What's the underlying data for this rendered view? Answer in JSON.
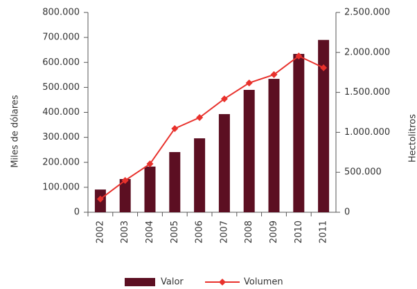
{
  "chart_data": {
    "type": "bar_line",
    "categories": [
      "2002",
      "2003",
      "2004",
      "2005",
      "2006",
      "2007",
      "2008",
      "2009",
      "2010",
      "2011"
    ],
    "ylabel": "Miles de dólares",
    "y2label": "Hectolitros",
    "ylim": [
      0,
      800000
    ],
    "yticks": [
      {
        "value": 0,
        "label": "0"
      },
      {
        "value": 100000,
        "label": "100.000"
      },
      {
        "value": 200000,
        "label": "200.000"
      },
      {
        "value": 300000,
        "label": "300.000"
      },
      {
        "value": 400000,
        "label": "400.000"
      },
      {
        "value": 500000,
        "label": "500.000"
      },
      {
        "value": 600000,
        "label": "600.000"
      },
      {
        "value": 700000,
        "label": "700.000"
      },
      {
        "value": 800000,
        "label": "800.000"
      }
    ],
    "y2lim": [
      0,
      2500000
    ],
    "y2ticks": [
      {
        "value": 0,
        "label": "0"
      },
      {
        "value": 500000,
        "label": "500.000"
      },
      {
        "value": 1000000,
        "label": "1.000.000"
      },
      {
        "value": 1500000,
        "label": "1.500.000"
      },
      {
        "value": 2000000,
        "label": "2.000.000"
      },
      {
        "value": 2500000,
        "label": "2.500.000"
      }
    ],
    "series": [
      {
        "name": "Valor",
        "type": "bar",
        "color": "#5c0f22",
        "values": [
          91000,
          133000,
          183000,
          241000,
          296000,
          393000,
          490000,
          534000,
          634000,
          690000
        ]
      },
      {
        "name": "Volumen",
        "type": "line",
        "axis": "y2",
        "color": "#e8312c",
        "values": [
          165000,
          398000,
          605000,
          1047000,
          1185000,
          1419000,
          1618000,
          1722000,
          1955000,
          1808000
        ]
      }
    ]
  }
}
